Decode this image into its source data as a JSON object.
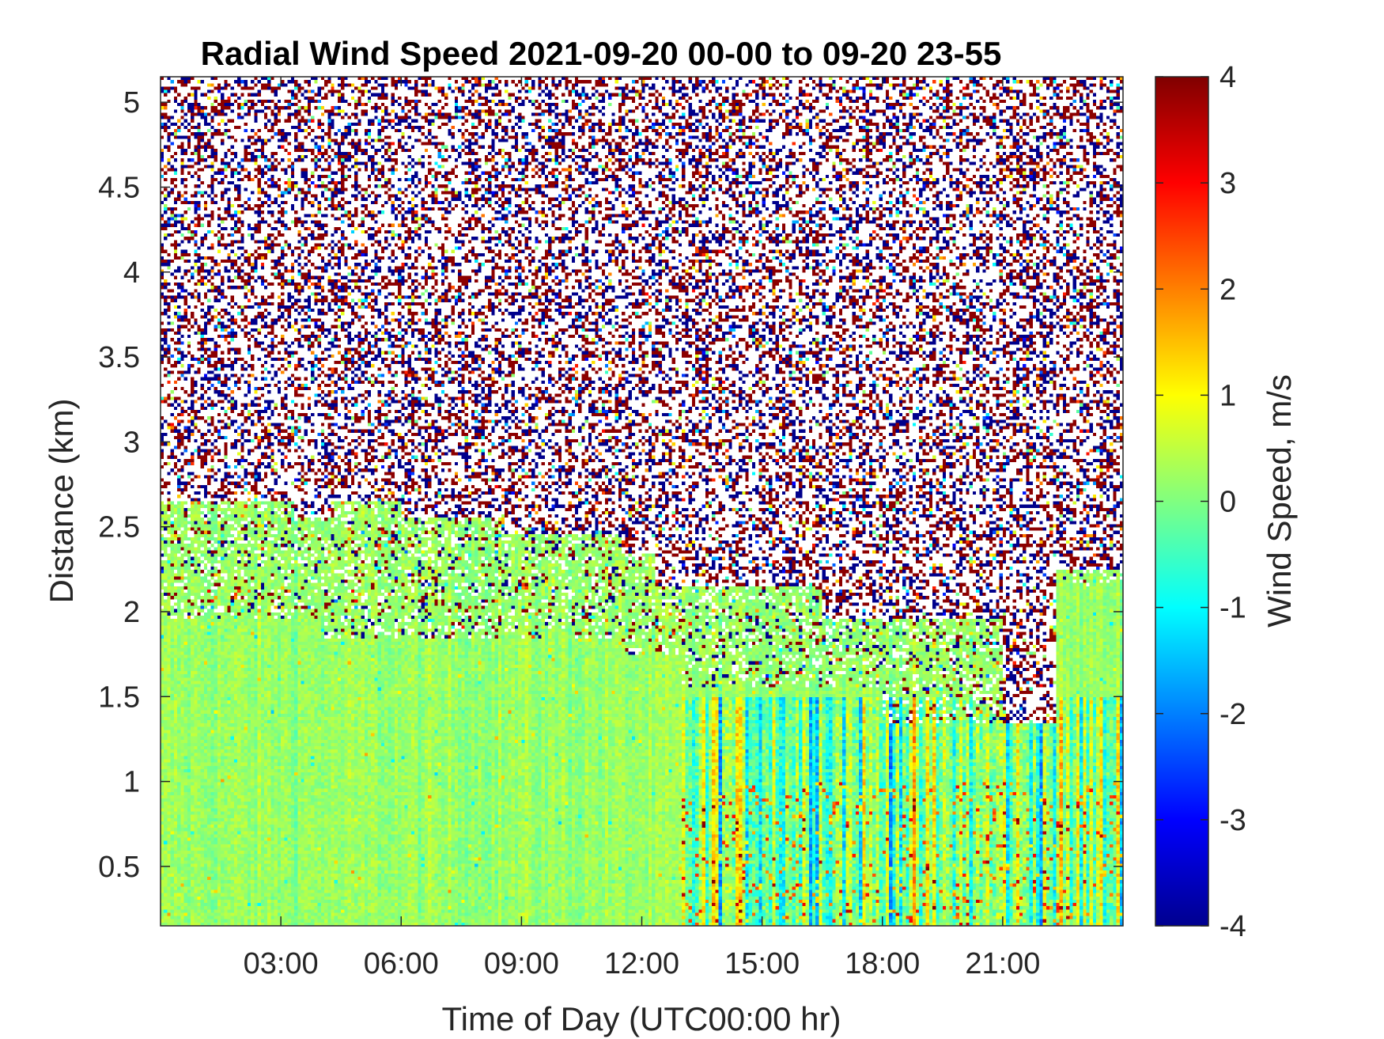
{
  "chart_data": {
    "type": "heatmap",
    "title": "Radial Wind Speed 2021-09-20 00-00 to 09-20 23-55",
    "xlabel": "Time of Day (UTC00:00 hr)",
    "ylabel": "Distance (km)",
    "colorbar_label": "Wind Speed, m/s",
    "x_ticks": [
      "03:00",
      "06:00",
      "09:00",
      "12:00",
      "15:00",
      "18:00",
      "21:00"
    ],
    "x_tick_hours": [
      3,
      6,
      9,
      12,
      15,
      18,
      21
    ],
    "xlim_hours": [
      0,
      24
    ],
    "y_ticks": [
      "0.5",
      "1",
      "1.5",
      "2",
      "2.5",
      "3",
      "3.5",
      "4",
      "4.5",
      "5"
    ],
    "y_tick_values": [
      0.5,
      1,
      1.5,
      2,
      2.5,
      3,
      3.5,
      4,
      4.5,
      5
    ],
    "ylim": [
      0.15,
      5.15
    ],
    "colorbar_ticks": [
      "4",
      "3",
      "2",
      "1",
      "0",
      "-1",
      "-2",
      "-3",
      "-4"
    ],
    "colorbar_values": [
      4,
      3,
      2,
      1,
      0,
      -1,
      -2,
      -3,
      -4
    ],
    "clim": [
      -4,
      4
    ],
    "colormap": "jet",
    "grid": false,
    "valid_data_top_km": [
      {
        "from_hour": 0,
        "to_hour": 0.1,
        "top_km": 2.65
      },
      {
        "from_hour": 0.1,
        "to_hour": 3.3,
        "top_km": 2.65
      },
      {
        "from_hour": 3.3,
        "to_hour": 4.3,
        "top_km": 2.55
      },
      {
        "from_hour": 4.3,
        "to_hour": 6.0,
        "top_km": 2.65
      },
      {
        "from_hour": 6.0,
        "to_hour": 8.5,
        "top_km": 2.55
      },
      {
        "from_hour": 8.5,
        "to_hour": 11.5,
        "top_km": 2.45
      },
      {
        "from_hour": 11.5,
        "to_hour": 12.3,
        "top_km": 2.35
      },
      {
        "from_hour": 12.3,
        "to_hour": 16.5,
        "top_km": 2.15
      },
      {
        "from_hour": 16.5,
        "to_hour": 21.0,
        "top_km": 1.95
      },
      {
        "from_hour": 21.0,
        "to_hour": 22.3,
        "top_km": 1.35
      },
      {
        "from_hour": 22.3,
        "to_hour": 24.0,
        "top_km": 2.25
      }
    ],
    "solid_data_top_km": [
      {
        "from_hour": 0,
        "to_hour": 3.3,
        "top_km": 1.95
      },
      {
        "from_hour": 3.3,
        "to_hour": 4.1,
        "top_km": 1.95
      },
      {
        "from_hour": 4.1,
        "to_hour": 6.0,
        "top_km": 1.85
      },
      {
        "from_hour": 6.0,
        "to_hour": 11.5,
        "top_km": 1.85
      },
      {
        "from_hour": 11.5,
        "to_hour": 13.0,
        "top_km": 1.75
      },
      {
        "from_hour": 13.0,
        "to_hour": 16.0,
        "top_km": 1.55
      },
      {
        "from_hour": 16.0,
        "to_hour": 18.0,
        "top_km": 1.55
      },
      {
        "from_hour": 18.0,
        "to_hour": 21.0,
        "top_km": 1.35
      },
      {
        "from_hour": 21.0,
        "to_hour": 22.3,
        "top_km": 1.35
      },
      {
        "from_hour": 22.3,
        "to_hour": 24.0,
        "top_km": 2.15
      }
    ],
    "typical_speed_m_s": {
      "morning_00_13": 0.2,
      "afternoon_13_24": "-1.5 to 3.5"
    }
  }
}
